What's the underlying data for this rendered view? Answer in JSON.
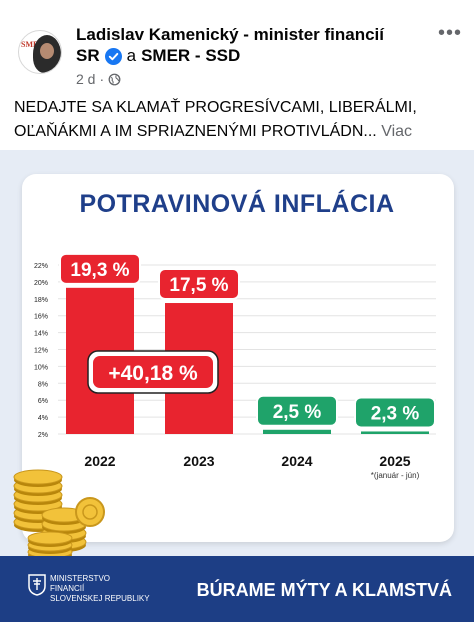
{
  "post": {
    "author_line1": "Ladislav Kamenický - minister financií",
    "author_line2_a": "SR",
    "conjunction": "a",
    "author_line2_b": "SMER - SSD",
    "time": "2 d",
    "dot": "·",
    "text": "NEDAJTE SA KLAMAŤ PROGRESÍVCAMI, LIBERÁLMI, OĽAŇÁKMI A IM SPRIAZNENÝMI PROTIVLÁDN...",
    "see_more": "Viac",
    "more_icon": "•••",
    "avatar_logo": "SMER"
  },
  "graphic": {
    "title": "POTRAVINOVÁ INFLÁCIA",
    "total_badge": "+40,18 %",
    "footer_ministry": "MINISTERSTVO\nFINANCIÍ\nSLOVENSKEJ REPUBLIKY",
    "footer_slogan": "BÚRAME MÝTY A KLAMSTVÁ",
    "colors": {
      "red": "#e8242f",
      "green": "#1fa36a",
      "navy": "#1d3e85",
      "title": "#1f3f8a"
    }
  },
  "chart_data": {
    "type": "bar",
    "categories": [
      "2022",
      "2023",
      "2024",
      "2025"
    ],
    "category_note": "*(január - jún)",
    "values": [
      19.3,
      17.5,
      2.5,
      2.3
    ],
    "value_labels": [
      "19,3 %",
      "17,5 %",
      "2,5 %",
      "2,3 %"
    ],
    "y_ticks": [
      "2%",
      "4%",
      "6%",
      "8%",
      "10%",
      "12%",
      "14%",
      "16%",
      "18%",
      "20%",
      "22%"
    ],
    "ylim": [
      2,
      22
    ],
    "grid": true,
    "bar_colors": [
      "#e8242f",
      "#e8242f",
      "#1fa36a",
      "#1fa36a"
    ]
  }
}
